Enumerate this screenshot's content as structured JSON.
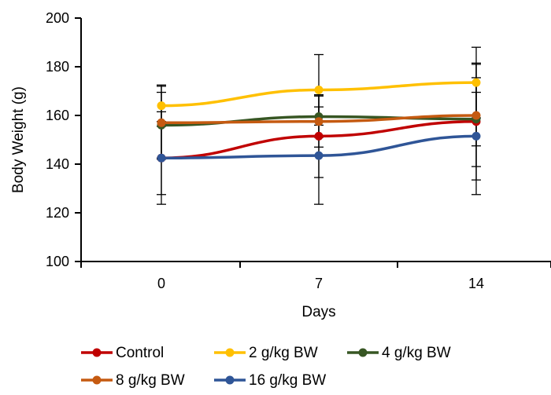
{
  "chart_data": {
    "type": "line",
    "xlabel": "Days",
    "ylabel": "Body Weight (g)",
    "categories": [
      "0",
      "7",
      "14"
    ],
    "ylim": [
      100,
      200
    ],
    "yticks": [
      "100",
      "120",
      "140",
      "160",
      "180",
      "200"
    ],
    "grid": false,
    "legend_position": "bottom",
    "series": [
      {
        "name": "Control",
        "color": "#C00000",
        "values": [
          142.5,
          151.5,
          157.5
        ],
        "errors": [
          19,
          17,
          24
        ]
      },
      {
        "name": "2 g/kg BW",
        "color": "#FFC000",
        "values": [
          164,
          170.5,
          173.5
        ],
        "errors": [
          8.5,
          14.5,
          14.5
        ]
      },
      {
        "name": "4 g/kg BW",
        "color": "#375623",
        "values": [
          156,
          159.5,
          158.5
        ],
        "errors": [
          13.5,
          8.5,
          11
        ]
      },
      {
        "name": "8 g/kg BW",
        "color": "#C55A11",
        "values": [
          157,
          157.5,
          160
        ],
        "errors": [
          15,
          10.5,
          21
        ]
      },
      {
        "name": "16 g/kg BW",
        "color": "#2F5597",
        "values": [
          142.5,
          143.5,
          151.5
        ],
        "errors": [
          15,
          20,
          24
        ]
      }
    ]
  }
}
